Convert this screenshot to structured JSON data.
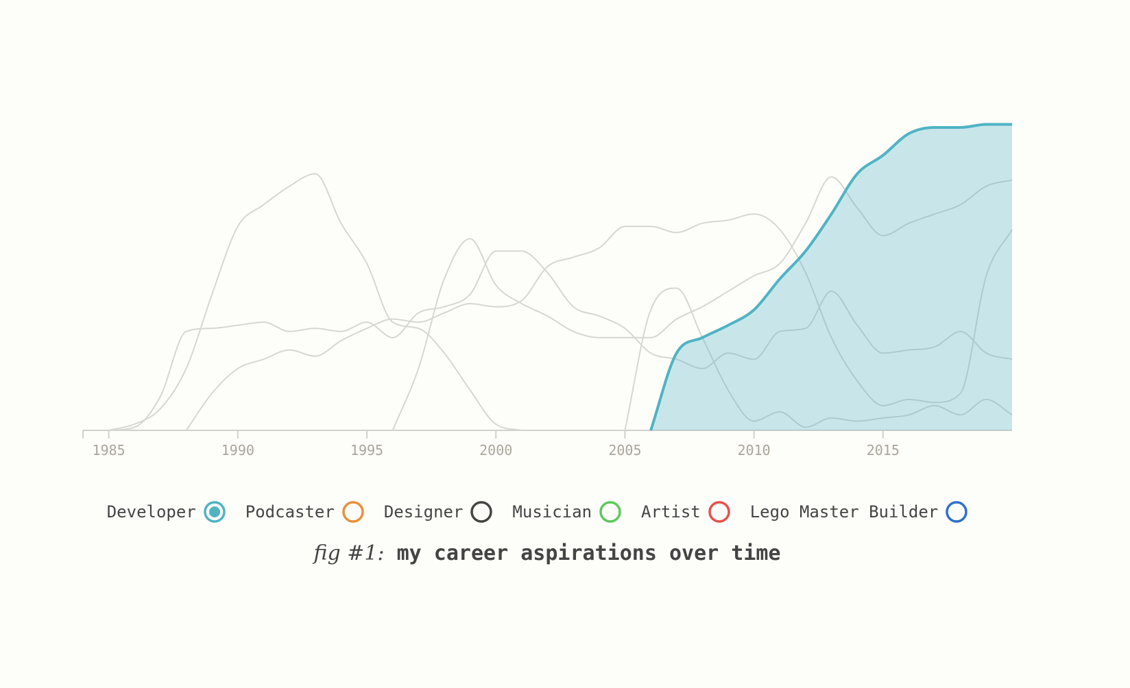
{
  "chart_data": {
    "type": "area-line",
    "caption_prefix": "fig #1:",
    "title": "my career aspirations over time",
    "x": [
      1984,
      1985,
      1986,
      1987,
      1988,
      1989,
      1990,
      1991,
      1992,
      1993,
      1994,
      1995,
      1996,
      1997,
      1998,
      1999,
      2000,
      2001,
      2002,
      2003,
      2004,
      2005,
      2006,
      2007,
      2008,
      2009,
      2010,
      2011,
      2012,
      2013,
      2014,
      2015,
      2016,
      2017,
      2018,
      2019,
      2020
    ],
    "xlim": [
      1984,
      2020
    ],
    "xticks": [
      1985,
      1990,
      1995,
      2000,
      2005,
      2010,
      2015
    ],
    "ylim": [
      0,
      100
    ],
    "highlight": 0,
    "muted_color": "#d6d6d3",
    "series": [
      {
        "name": "Developer",
        "color": "#4fb3c4",
        "values": [
          null,
          null,
          null,
          null,
          null,
          null,
          null,
          null,
          null,
          null,
          null,
          null,
          null,
          null,
          null,
          null,
          null,
          null,
          null,
          null,
          null,
          null,
          0,
          25,
          30,
          34,
          39,
          49,
          58,
          70,
          83,
          89,
          96,
          98,
          98,
          99,
          99
        ]
      },
      {
        "name": "Podcaster",
        "color": "#e8903a",
        "values": [
          null,
          null,
          null,
          null,
          null,
          null,
          null,
          null,
          null,
          null,
          null,
          null,
          0,
          20,
          49,
          62,
          47,
          41,
          37,
          32,
          30,
          30,
          30,
          36,
          40,
          45,
          50,
          54,
          67,
          82,
          72,
          63,
          67,
          70,
          73,
          79,
          81
        ]
      },
      {
        "name": "Designer",
        "color": "#444444",
        "values": [
          null,
          null,
          null,
          null,
          0,
          12,
          20,
          23,
          26,
          24,
          29,
          33,
          36,
          35,
          38,
          41,
          40,
          42,
          53,
          56,
          59,
          66,
          66,
          64,
          67,
          68,
          70,
          65,
          51,
          30,
          16,
          8,
          10,
          9,
          12,
          50,
          65
        ]
      },
      {
        "name": "Musician",
        "color": "#5ec85a",
        "values": [
          null,
          0,
          2,
          7,
          20,
          44,
          66,
          73,
          79,
          83,
          67,
          54,
          35,
          33,
          25,
          13,
          2,
          0,
          null,
          null,
          null,
          null,
          null,
          null,
          null,
          null,
          null,
          null,
          null,
          null,
          null,
          null,
          null,
          null,
          null,
          null,
          null
        ]
      },
      {
        "name": "Artist",
        "color": "#e2524a",
        "values": [
          null,
          0,
          1,
          11,
          32,
          33,
          34,
          35,
          32,
          33,
          32,
          35,
          30,
          38,
          40,
          44,
          58,
          58,
          51,
          40,
          37,
          33,
          25,
          23,
          20,
          25,
          23,
          32,
          33,
          45,
          34,
          25,
          26,
          27,
          32,
          25,
          23
        ]
      },
      {
        "name": "Lego Master Builder",
        "color": "#2f6fce",
        "values": [
          null,
          null,
          null,
          null,
          null,
          null,
          null,
          null,
          null,
          null,
          null,
          null,
          null,
          null,
          null,
          null,
          null,
          null,
          null,
          null,
          null,
          0,
          39,
          46,
          30,
          13,
          3,
          6,
          1,
          4,
          3,
          4,
          5,
          8,
          5,
          10,
          5
        ]
      }
    ]
  }
}
